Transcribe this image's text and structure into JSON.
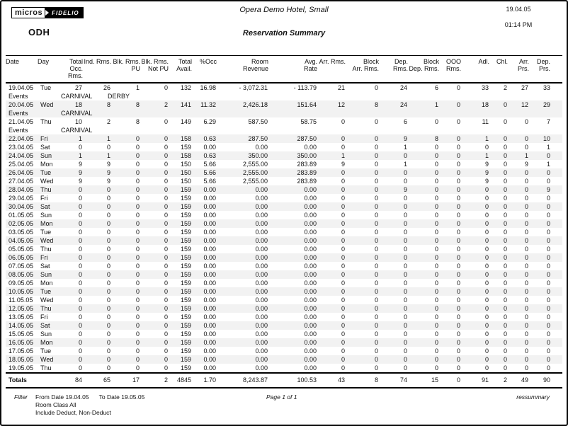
{
  "header": {
    "logo_micros": "micros",
    "logo_fidelio": "FIDELIO",
    "property_code": "ODH",
    "hotel_name": "Opera Demo Hotel, Small",
    "report_title": "Reservation Summary",
    "date": "19.04.05",
    "time": "01:14 PM"
  },
  "colors": {
    "stripe": "#f2f2f2",
    "logo_bg": "#000000",
    "text": "#111111"
  },
  "table": {
    "events_label": "Events",
    "columns": [
      {
        "key": "date",
        "label": "Date",
        "align": "left"
      },
      {
        "key": "day",
        "label": "Day",
        "align": "left"
      },
      {
        "key": "total_occ_rms",
        "label": "Total Occ.\nRms.",
        "align": "right"
      },
      {
        "key": "ind_rms",
        "label": "Ind. Rms.",
        "align": "right"
      },
      {
        "key": "blk_rms_pu",
        "label": "Blk. Rms.\nPU",
        "align": "right"
      },
      {
        "key": "blk_rms_not_pu",
        "label": "Blk. Rms.\nNot PU",
        "align": "right"
      },
      {
        "key": "total_avail",
        "label": "Total\nAvail.",
        "align": "right"
      },
      {
        "key": "pct_occ",
        "label": "%Occ",
        "align": "right"
      },
      {
        "key": "room_revenue",
        "label": "Room\nRevenue",
        "align": "right"
      },
      {
        "key": "avg_rate",
        "label": "Avg.\nRate",
        "align": "right"
      },
      {
        "key": "arr_rms",
        "label": "Arr. Rms.",
        "align": "right"
      },
      {
        "key": "block_arr_rms",
        "label": "Block\nArr. Rms.",
        "align": "right"
      },
      {
        "key": "dep_rms",
        "label": "Dep. Rms.",
        "align": "right"
      },
      {
        "key": "block_dep_rms",
        "label": "Block\nDep. Rms.",
        "align": "right"
      },
      {
        "key": "ooo_rms",
        "label": "OOO\nRms.",
        "align": "right"
      },
      {
        "key": "adl",
        "label": "Adl.",
        "align": "right"
      },
      {
        "key": "chl",
        "label": "Chl.",
        "align": "right"
      },
      {
        "key": "arr_prs",
        "label": "Arr.\nPrs.",
        "align": "right"
      },
      {
        "key": "dep_prs",
        "label": "Dep.\nPrs.",
        "align": "right"
      }
    ],
    "rows": [
      {
        "date": "19.04.05",
        "day": "Tue",
        "values": [
          "27",
          "26",
          "1",
          "0",
          "132",
          "16.98",
          "- 3,072.31",
          "- 113.79",
          "21",
          "0",
          "24",
          "6",
          "0",
          "33",
          "2",
          "27",
          "33"
        ],
        "events": [
          "CARNIVAL",
          "DERBY"
        ]
      },
      {
        "date": "20.04.05",
        "day": "Wed",
        "values": [
          "18",
          "8",
          "8",
          "2",
          "141",
          "11.32",
          "2,426.18",
          "151.64",
          "12",
          "8",
          "24",
          "1",
          "0",
          "18",
          "0",
          "12",
          "29"
        ],
        "events": [
          "CARNIVAL"
        ]
      },
      {
        "date": "21.04.05",
        "day": "Thu",
        "values": [
          "10",
          "2",
          "8",
          "0",
          "149",
          "6.29",
          "587.50",
          "58.75",
          "0",
          "0",
          "6",
          "0",
          "0",
          "11",
          "0",
          "0",
          "7"
        ],
        "events": [
          "CARNIVAL"
        ]
      },
      {
        "date": "22.04.05",
        "day": "Fri",
        "values": [
          "1",
          "1",
          "0",
          "0",
          "158",
          "0.63",
          "287.50",
          "287.50",
          "0",
          "0",
          "9",
          "8",
          "0",
          "1",
          "0",
          "0",
          "10"
        ]
      },
      {
        "date": "23.04.05",
        "day": "Sat",
        "values": [
          "0",
          "0",
          "0",
          "0",
          "159",
          "0.00",
          "0.00",
          "0.00",
          "0",
          "0",
          "1",
          "0",
          "0",
          "0",
          "0",
          "0",
          "1"
        ]
      },
      {
        "date": "24.04.05",
        "day": "Sun",
        "values": [
          "1",
          "1",
          "0",
          "0",
          "158",
          "0.63",
          "350.00",
          "350.00",
          "1",
          "0",
          "0",
          "0",
          "0",
          "1",
          "0",
          "1",
          "0"
        ]
      },
      {
        "date": "25.04.05",
        "day": "Mon",
        "values": [
          "9",
          "9",
          "0",
          "0",
          "150",
          "5.66",
          "2,555.00",
          "283.89",
          "9",
          "0",
          "1",
          "0",
          "0",
          "9",
          "0",
          "9",
          "1"
        ]
      },
      {
        "date": "26.04.05",
        "day": "Tue",
        "values": [
          "9",
          "9",
          "0",
          "0",
          "150",
          "5.66",
          "2,555.00",
          "283.89",
          "0",
          "0",
          "0",
          "0",
          "0",
          "9",
          "0",
          "0",
          "0"
        ]
      },
      {
        "date": "27.04.05",
        "day": "Wed",
        "values": [
          "9",
          "9",
          "0",
          "0",
          "150",
          "5.66",
          "2,555.00",
          "283.89",
          "0",
          "0",
          "0",
          "0",
          "0",
          "9",
          "0",
          "0",
          "0"
        ]
      },
      {
        "date": "28.04.05",
        "day": "Thu",
        "values": [
          "0",
          "0",
          "0",
          "0",
          "159",
          "0.00",
          "0.00",
          "0.00",
          "0",
          "0",
          "9",
          "0",
          "0",
          "0",
          "0",
          "0",
          "9"
        ]
      },
      {
        "date": "29.04.05",
        "day": "Fri",
        "values": [
          "0",
          "0",
          "0",
          "0",
          "159",
          "0.00",
          "0.00",
          "0.00",
          "0",
          "0",
          "0",
          "0",
          "0",
          "0",
          "0",
          "0",
          "0"
        ]
      },
      {
        "date": "30.04.05",
        "day": "Sat",
        "values": [
          "0",
          "0",
          "0",
          "0",
          "159",
          "0.00",
          "0.00",
          "0.00",
          "0",
          "0",
          "0",
          "0",
          "0",
          "0",
          "0",
          "0",
          "0"
        ]
      },
      {
        "date": "01.05.05",
        "day": "Sun",
        "values": [
          "0",
          "0",
          "0",
          "0",
          "159",
          "0.00",
          "0.00",
          "0.00",
          "0",
          "0",
          "0",
          "0",
          "0",
          "0",
          "0",
          "0",
          "0"
        ]
      },
      {
        "date": "02.05.05",
        "day": "Mon",
        "values": [
          "0",
          "0",
          "0",
          "0",
          "159",
          "0.00",
          "0.00",
          "0.00",
          "0",
          "0",
          "0",
          "0",
          "0",
          "0",
          "0",
          "0",
          "0"
        ]
      },
      {
        "date": "03.05.05",
        "day": "Tue",
        "values": [
          "0",
          "0",
          "0",
          "0",
          "159",
          "0.00",
          "0.00",
          "0.00",
          "0",
          "0",
          "0",
          "0",
          "0",
          "0",
          "0",
          "0",
          "0"
        ]
      },
      {
        "date": "04.05.05",
        "day": "Wed",
        "values": [
          "0",
          "0",
          "0",
          "0",
          "159",
          "0.00",
          "0.00",
          "0.00",
          "0",
          "0",
          "0",
          "0",
          "0",
          "0",
          "0",
          "0",
          "0"
        ]
      },
      {
        "date": "05.05.05",
        "day": "Thu",
        "values": [
          "0",
          "0",
          "0",
          "0",
          "159",
          "0.00",
          "0.00",
          "0.00",
          "0",
          "0",
          "0",
          "0",
          "0",
          "0",
          "0",
          "0",
          "0"
        ]
      },
      {
        "date": "06.05.05",
        "day": "Fri",
        "values": [
          "0",
          "0",
          "0",
          "0",
          "159",
          "0.00",
          "0.00",
          "0.00",
          "0",
          "0",
          "0",
          "0",
          "0",
          "0",
          "0",
          "0",
          "0"
        ]
      },
      {
        "date": "07.05.05",
        "day": "Sat",
        "values": [
          "0",
          "0",
          "0",
          "0",
          "159",
          "0.00",
          "0.00",
          "0.00",
          "0",
          "0",
          "0",
          "0",
          "0",
          "0",
          "0",
          "0",
          "0"
        ]
      },
      {
        "date": "08.05.05",
        "day": "Sun",
        "values": [
          "0",
          "0",
          "0",
          "0",
          "159",
          "0.00",
          "0.00",
          "0.00",
          "0",
          "0",
          "0",
          "0",
          "0",
          "0",
          "0",
          "0",
          "0"
        ]
      },
      {
        "date": "09.05.05",
        "day": "Mon",
        "values": [
          "0",
          "0",
          "0",
          "0",
          "159",
          "0.00",
          "0.00",
          "0.00",
          "0",
          "0",
          "0",
          "0",
          "0",
          "0",
          "0",
          "0",
          "0"
        ]
      },
      {
        "date": "10.05.05",
        "day": "Tue",
        "values": [
          "0",
          "0",
          "0",
          "0",
          "159",
          "0.00",
          "0.00",
          "0.00",
          "0",
          "0",
          "0",
          "0",
          "0",
          "0",
          "0",
          "0",
          "0"
        ]
      },
      {
        "date": "11.05.05",
        "day": "Wed",
        "values": [
          "0",
          "0",
          "0",
          "0",
          "159",
          "0.00",
          "0.00",
          "0.00",
          "0",
          "0",
          "0",
          "0",
          "0",
          "0",
          "0",
          "0",
          "0"
        ]
      },
      {
        "date": "12.05.05",
        "day": "Thu",
        "values": [
          "0",
          "0",
          "0",
          "0",
          "159",
          "0.00",
          "0.00",
          "0.00",
          "0",
          "0",
          "0",
          "0",
          "0",
          "0",
          "0",
          "0",
          "0"
        ]
      },
      {
        "date": "13.05.05",
        "day": "Fri",
        "values": [
          "0",
          "0",
          "0",
          "0",
          "159",
          "0.00",
          "0.00",
          "0.00",
          "0",
          "0",
          "0",
          "0",
          "0",
          "0",
          "0",
          "0",
          "0"
        ]
      },
      {
        "date": "14.05.05",
        "day": "Sat",
        "values": [
          "0",
          "0",
          "0",
          "0",
          "159",
          "0.00",
          "0.00",
          "0.00",
          "0",
          "0",
          "0",
          "0",
          "0",
          "0",
          "0",
          "0",
          "0"
        ]
      },
      {
        "date": "15.05.05",
        "day": "Sun",
        "values": [
          "0",
          "0",
          "0",
          "0",
          "159",
          "0.00",
          "0.00",
          "0.00",
          "0",
          "0",
          "0",
          "0",
          "0",
          "0",
          "0",
          "0",
          "0"
        ]
      },
      {
        "date": "16.05.05",
        "day": "Mon",
        "values": [
          "0",
          "0",
          "0",
          "0",
          "159",
          "0.00",
          "0.00",
          "0.00",
          "0",
          "0",
          "0",
          "0",
          "0",
          "0",
          "0",
          "0",
          "0"
        ]
      },
      {
        "date": "17.05.05",
        "day": "Tue",
        "values": [
          "0",
          "0",
          "0",
          "0",
          "159",
          "0.00",
          "0.00",
          "0.00",
          "0",
          "0",
          "0",
          "0",
          "0",
          "0",
          "0",
          "0",
          "0"
        ]
      },
      {
        "date": "18.05.05",
        "day": "Wed",
        "values": [
          "0",
          "0",
          "0",
          "0",
          "159",
          "0.00",
          "0.00",
          "0.00",
          "0",
          "0",
          "0",
          "0",
          "0",
          "0",
          "0",
          "0",
          "0"
        ]
      },
      {
        "date": "19.05.05",
        "day": "Thu",
        "values": [
          "0",
          "0",
          "0",
          "0",
          "159",
          "0.00",
          "0.00",
          "0.00",
          "0",
          "0",
          "0",
          "0",
          "0",
          "0",
          "0",
          "0",
          "0"
        ]
      }
    ],
    "totals": {
      "label": "Totals",
      "values": [
        "84",
        "65",
        "17",
        "2",
        "4845",
        "1.70",
        "8,243.87",
        "100.53",
        "43",
        "8",
        "74",
        "15",
        "0",
        "91",
        "2",
        "49",
        "90"
      ]
    }
  },
  "footer": {
    "filter_label": "Filter",
    "from_date": "From Date 19.04.05",
    "to_date": "To Date 19.05.05",
    "room_class": "Room Class All",
    "include": "Include Deduct, Non-Deduct",
    "page": "Page 1 of 1",
    "report_code": "ressummary"
  }
}
